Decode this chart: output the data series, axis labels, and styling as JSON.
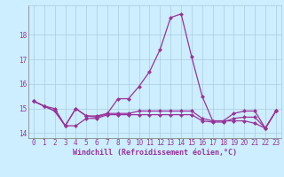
{
  "x": [
    0,
    1,
    2,
    3,
    4,
    5,
    6,
    7,
    8,
    9,
    10,
    11,
    12,
    13,
    14,
    15,
    16,
    17,
    18,
    19,
    20,
    21,
    22,
    23
  ],
  "line1": [
    15.3,
    15.1,
    15.0,
    14.3,
    15.0,
    14.7,
    14.7,
    14.8,
    14.8,
    14.8,
    14.9,
    14.9,
    14.9,
    14.9,
    14.9,
    14.9,
    14.6,
    14.5,
    14.5,
    14.5,
    14.5,
    14.4,
    14.2,
    14.9
  ],
  "line2": [
    15.3,
    15.1,
    14.9,
    14.3,
    15.0,
    14.7,
    14.65,
    14.8,
    15.4,
    15.4,
    15.9,
    16.5,
    17.4,
    18.7,
    18.85,
    17.1,
    15.5,
    14.5,
    14.5,
    14.8,
    14.9,
    14.9,
    14.2,
    14.9
  ],
  "line3": [
    15.3,
    15.1,
    14.9,
    14.3,
    14.3,
    14.6,
    14.6,
    14.75,
    14.75,
    14.75,
    14.75,
    14.75,
    14.75,
    14.75,
    14.75,
    14.75,
    14.5,
    14.45,
    14.45,
    14.6,
    14.65,
    14.65,
    14.2,
    14.9
  ],
  "line_color": "#993399",
  "bg_color": "#cceeff",
  "grid_color": "#aaccdd",
  "xlabel": "Windchill (Refroidissement éolien,°C)",
  "ylim_min": 13.8,
  "ylim_max": 19.2,
  "xlim_min": -0.5,
  "xlim_max": 23.5,
  "yticks": [
    14,
    15,
    16,
    17,
    18
  ],
  "xticks": [
    0,
    1,
    2,
    3,
    4,
    5,
    6,
    7,
    8,
    9,
    10,
    11,
    12,
    13,
    14,
    15,
    16,
    17,
    18,
    19,
    20,
    21,
    22,
    23
  ],
  "markersize": 2.5,
  "linewidth": 0.9,
  "tick_fontsize": 5.5,
  "xlabel_fontsize": 6.0
}
